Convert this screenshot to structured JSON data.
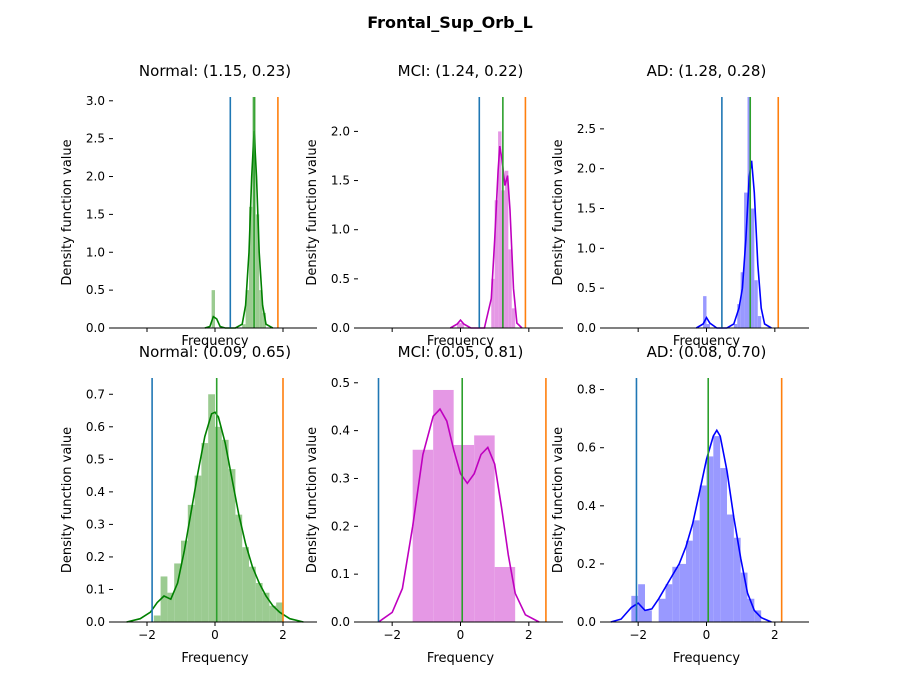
{
  "figure": {
    "title": "Frontal_Sup_Orb_L"
  },
  "colors": {
    "green": "#008000",
    "green_fill": "#9bcb91",
    "magenta": "#bf00bf",
    "magenta_fill": "#e598e5",
    "blue": "#0000ff",
    "blue_fill": "#9999ff",
    "vline_blue": "#1f77b4",
    "vline_green": "#2ca02c",
    "vline_orange": "#ff7f0e"
  },
  "chart_data": [
    {
      "type": "histogram+kde",
      "title": "Normal: (1.15, 0.23)",
      "xlabel": "Frequency",
      "ylabel": "Density function value",
      "xlim": [
        -3,
        3
      ],
      "ylim": [
        0,
        3.05
      ],
      "yticks": [
        0.0,
        0.5,
        1.0,
        1.5,
        2.0,
        2.5,
        3.0
      ],
      "xticks": [],
      "show_x_ticklabels": false,
      "color": "green",
      "bin_width": 0.1,
      "hist": [
        {
          "x": -0.05,
          "h": 0.5
        },
        {
          "x": 0.85,
          "h": 0.05
        },
        {
          "x": 0.95,
          "h": 0.5
        },
        {
          "x": 1.05,
          "h": 1.6
        },
        {
          "x": 1.15,
          "h": 3.05
        },
        {
          "x": 1.25,
          "h": 1.5
        },
        {
          "x": 1.35,
          "h": 0.5
        },
        {
          "x": 1.45,
          "h": 0.2
        }
      ],
      "kde": [
        [
          -0.3,
          0
        ],
        [
          -0.15,
          0.02
        ],
        [
          -0.05,
          0.15
        ],
        [
          0.05,
          0.12
        ],
        [
          0.15,
          0.02
        ],
        [
          0.3,
          0
        ],
        [
          0.6,
          0
        ],
        [
          0.8,
          0.05
        ],
        [
          0.9,
          0.3
        ],
        [
          1.0,
          1.0
        ],
        [
          1.08,
          2.0
        ],
        [
          1.15,
          2.6
        ],
        [
          1.22,
          2.0
        ],
        [
          1.3,
          1.0
        ],
        [
          1.4,
          0.3
        ],
        [
          1.5,
          0.05
        ],
        [
          1.7,
          0
        ]
      ],
      "vlines": [
        {
          "x": 0.45,
          "color": "vline_blue"
        },
        {
          "x": 1.15,
          "color": "vline_green"
        },
        {
          "x": 1.85,
          "color": "vline_orange"
        }
      ]
    },
    {
      "type": "histogram+kde",
      "title": "MCI: (1.24, 0.22)",
      "xlabel": "Frequency",
      "ylabel": "Density function value",
      "xlim": [
        -3,
        3
      ],
      "ylim": [
        0,
        2.35
      ],
      "yticks": [
        0.0,
        0.5,
        1.0,
        1.5,
        2.0
      ],
      "xticks": [],
      "show_x_ticklabels": false,
      "color": "magenta",
      "bin_width": 0.1,
      "hist": [
        {
          "x": -0.05,
          "h": 0.05
        },
        {
          "x": 0.05,
          "h": 0.05
        },
        {
          "x": 0.95,
          "h": 0.5
        },
        {
          "x": 1.05,
          "h": 1.3
        },
        {
          "x": 1.15,
          "h": 2.0
        },
        {
          "x": 1.25,
          "h": 1.4
        },
        {
          "x": 1.35,
          "h": 1.6
        },
        {
          "x": 1.45,
          "h": 0.8
        },
        {
          "x": 1.55,
          "h": 0.2
        }
      ],
      "kde": [
        [
          -0.3,
          0
        ],
        [
          -0.1,
          0.04
        ],
        [
          0.0,
          0.08
        ],
        [
          0.1,
          0.04
        ],
        [
          0.3,
          0
        ],
        [
          0.7,
          0
        ],
        [
          0.9,
          0.3
        ],
        [
          1.0,
          0.9
        ],
        [
          1.1,
          1.6
        ],
        [
          1.15,
          1.85
        ],
        [
          1.22,
          1.7
        ],
        [
          1.3,
          1.45
        ],
        [
          1.38,
          1.55
        ],
        [
          1.45,
          1.2
        ],
        [
          1.55,
          0.4
        ],
        [
          1.65,
          0.05
        ],
        [
          1.8,
          0
        ]
      ],
      "vlines": [
        {
          "x": 0.55,
          "color": "vline_blue"
        },
        {
          "x": 1.24,
          "color": "vline_green"
        },
        {
          "x": 1.9,
          "color": "vline_orange"
        }
      ]
    },
    {
      "type": "histogram+kde",
      "title": "AD: (1.28, 0.28)",
      "xlabel": "Frequency",
      "ylabel": "Density function value",
      "xlim": [
        -3,
        3
      ],
      "ylim": [
        0,
        2.9
      ],
      "yticks": [
        0.0,
        0.5,
        1.0,
        1.5,
        2.0,
        2.5
      ],
      "xticks": [],
      "show_x_ticklabels": false,
      "color": "blue",
      "bin_width": 0.1,
      "hist": [
        {
          "x": -0.05,
          "h": 0.4
        },
        {
          "x": 0.05,
          "h": 0.05
        },
        {
          "x": 0.85,
          "h": 0.05
        },
        {
          "x": 0.95,
          "h": 0.3
        },
        {
          "x": 1.05,
          "h": 0.7
        },
        {
          "x": 1.15,
          "h": 1.7
        },
        {
          "x": 1.25,
          "h": 2.9
        },
        {
          "x": 1.35,
          "h": 1.5
        },
        {
          "x": 1.45,
          "h": 0.6
        },
        {
          "x": 1.55,
          "h": 0.15
        }
      ],
      "kde": [
        [
          -0.3,
          0
        ],
        [
          -0.1,
          0.05
        ],
        [
          0.0,
          0.13
        ],
        [
          0.1,
          0.06
        ],
        [
          0.3,
          0
        ],
        [
          0.6,
          0
        ],
        [
          0.8,
          0.05
        ],
        [
          0.95,
          0.25
        ],
        [
          1.05,
          0.5
        ],
        [
          1.15,
          1.1
        ],
        [
          1.25,
          1.9
        ],
        [
          1.32,
          2.1
        ],
        [
          1.4,
          1.7
        ],
        [
          1.5,
          0.8
        ],
        [
          1.6,
          0.25
        ],
        [
          1.7,
          0.05
        ],
        [
          1.9,
          0
        ]
      ],
      "vlines": [
        {
          "x": 0.45,
          "color": "vline_blue"
        },
        {
          "x": 1.28,
          "color": "vline_green"
        },
        {
          "x": 2.1,
          "color": "vline_orange"
        }
      ]
    },
    {
      "type": "histogram+kde",
      "title": "Normal: (0.09, 0.65)",
      "xlabel": "Frequency",
      "ylabel": "Density function value",
      "xlim": [
        -3,
        3
      ],
      "ylim": [
        0,
        0.75
      ],
      "yticks": [
        0.0,
        0.1,
        0.2,
        0.3,
        0.4,
        0.5,
        0.6,
        0.7
      ],
      "xticks": [
        -2,
        0,
        2
      ],
      "show_x_ticklabels": true,
      "color": "green",
      "bin_width": 0.2,
      "hist": [
        {
          "x": -1.7,
          "h": 0.02
        },
        {
          "x": -1.5,
          "h": 0.14
        },
        {
          "x": -1.3,
          "h": 0.09
        },
        {
          "x": -1.1,
          "h": 0.18
        },
        {
          "x": -0.9,
          "h": 0.25
        },
        {
          "x": -0.7,
          "h": 0.36
        },
        {
          "x": -0.5,
          "h": 0.45
        },
        {
          "x": -0.3,
          "h": 0.55
        },
        {
          "x": -0.1,
          "h": 0.7
        },
        {
          "x": 0.1,
          "h": 0.6
        },
        {
          "x": 0.3,
          "h": 0.56
        },
        {
          "x": 0.5,
          "h": 0.47
        },
        {
          "x": 0.7,
          "h": 0.33
        },
        {
          "x": 0.9,
          "h": 0.23
        },
        {
          "x": 1.1,
          "h": 0.17
        },
        {
          "x": 1.3,
          "h": 0.12
        },
        {
          "x": 1.5,
          "h": 0.09
        },
        {
          "x": 1.7,
          "h": 0.05
        },
        {
          "x": 1.9,
          "h": 0.06
        }
      ],
      "kde": [
        [
          -2.6,
          0
        ],
        [
          -2.2,
          0.01
        ],
        [
          -1.9,
          0.03
        ],
        [
          -1.7,
          0.06
        ],
        [
          -1.5,
          0.08
        ],
        [
          -1.3,
          0.07
        ],
        [
          -1.1,
          0.12
        ],
        [
          -0.9,
          0.22
        ],
        [
          -0.7,
          0.34
        ],
        [
          -0.5,
          0.46
        ],
        [
          -0.3,
          0.57
        ],
        [
          -0.1,
          0.64
        ],
        [
          0.0,
          0.645
        ],
        [
          0.1,
          0.63
        ],
        [
          0.3,
          0.55
        ],
        [
          0.5,
          0.44
        ],
        [
          0.7,
          0.33
        ],
        [
          0.9,
          0.24
        ],
        [
          1.1,
          0.17
        ],
        [
          1.3,
          0.12
        ],
        [
          1.5,
          0.08
        ],
        [
          1.7,
          0.05
        ],
        [
          1.9,
          0.03
        ],
        [
          2.2,
          0.01
        ],
        [
          2.6,
          0
        ]
      ],
      "vlines": [
        {
          "x": -1.85,
          "color": "vline_blue"
        },
        {
          "x": 0.05,
          "color": "vline_green"
        },
        {
          "x": 2.0,
          "color": "vline_orange"
        }
      ]
    },
    {
      "type": "histogram+kde",
      "title": "MCI: (0.05, 0.81)",
      "xlabel": "Frequency",
      "ylabel": "Density function value",
      "xlim": [
        -3,
        3
      ],
      "ylim": [
        0,
        0.51
      ],
      "yticks": [
        0.0,
        0.1,
        0.2,
        0.3,
        0.4,
        0.5
      ],
      "xticks": [
        -2,
        0,
        2
      ],
      "show_x_ticklabels": true,
      "color": "magenta",
      "bin_width": 0.6,
      "hist": [
        {
          "x": -1.1,
          "h": 0.36
        },
        {
          "x": -0.5,
          "h": 0.485
        },
        {
          "x": 0.1,
          "h": 0.37
        },
        {
          "x": 0.7,
          "h": 0.39
        },
        {
          "x": 1.3,
          "h": 0.115
        }
      ],
      "kde": [
        [
          -2.4,
          0
        ],
        [
          -2.0,
          0.02
        ],
        [
          -1.7,
          0.07
        ],
        [
          -1.4,
          0.2
        ],
        [
          -1.1,
          0.35
        ],
        [
          -0.8,
          0.43
        ],
        [
          -0.6,
          0.445
        ],
        [
          -0.4,
          0.42
        ],
        [
          -0.2,
          0.36
        ],
        [
          0.0,
          0.31
        ],
        [
          0.2,
          0.29
        ],
        [
          0.4,
          0.31
        ],
        [
          0.6,
          0.35
        ],
        [
          0.8,
          0.365
        ],
        [
          1.0,
          0.33
        ],
        [
          1.2,
          0.24
        ],
        [
          1.4,
          0.14
        ],
        [
          1.6,
          0.06
        ],
        [
          1.9,
          0.015
        ],
        [
          2.3,
          0
        ]
      ],
      "vlines": [
        {
          "x": -2.4,
          "color": "vline_blue"
        },
        {
          "x": 0.05,
          "color": "vline_green"
        },
        {
          "x": 2.5,
          "color": "vline_orange"
        }
      ]
    },
    {
      "type": "histogram+kde",
      "title": "AD: (0.08, 0.70)",
      "xlabel": "Frequency",
      "ylabel": "Density function value",
      "xlim": [
        -3,
        3
      ],
      "ylim": [
        0,
        0.84
      ],
      "yticks": [
        0.0,
        0.2,
        0.4,
        0.6,
        0.8
      ],
      "xticks": [
        -2,
        0,
        2
      ],
      "show_x_ticklabels": true,
      "color": "blue",
      "bin_width": 0.2,
      "hist": [
        {
          "x": -2.1,
          "h": 0.09
        },
        {
          "x": -1.9,
          "h": 0.13
        },
        {
          "x": -1.7,
          "h": 0.04
        },
        {
          "x": -1.3,
          "h": 0.08
        },
        {
          "x": -1.1,
          "h": 0.13
        },
        {
          "x": -0.9,
          "h": 0.19
        },
        {
          "x": -0.7,
          "h": 0.2
        },
        {
          "x": -0.5,
          "h": 0.28
        },
        {
          "x": -0.3,
          "h": 0.35
        },
        {
          "x": -0.1,
          "h": 0.47
        },
        {
          "x": 0.1,
          "h": 0.57
        },
        {
          "x": 0.3,
          "h": 0.64
        },
        {
          "x": 0.5,
          "h": 0.53
        },
        {
          "x": 0.7,
          "h": 0.37
        },
        {
          "x": 0.9,
          "h": 0.29
        },
        {
          "x": 1.1,
          "h": 0.17
        },
        {
          "x": 1.3,
          "h": 0.08
        },
        {
          "x": 1.5,
          "h": 0.04
        }
      ],
      "kde": [
        [
          -2.8,
          0
        ],
        [
          -2.5,
          0.01
        ],
        [
          -2.2,
          0.05
        ],
        [
          -2.0,
          0.065
        ],
        [
          -1.8,
          0.04
        ],
        [
          -1.6,
          0.045
        ],
        [
          -1.4,
          0.08
        ],
        [
          -1.2,
          0.12
        ],
        [
          -1.0,
          0.16
        ],
        [
          -0.8,
          0.2
        ],
        [
          -0.6,
          0.26
        ],
        [
          -0.4,
          0.34
        ],
        [
          -0.2,
          0.45
        ],
        [
          0.0,
          0.56
        ],
        [
          0.2,
          0.64
        ],
        [
          0.3,
          0.66
        ],
        [
          0.4,
          0.64
        ],
        [
          0.6,
          0.52
        ],
        [
          0.8,
          0.36
        ],
        [
          1.0,
          0.22
        ],
        [
          1.2,
          0.1
        ],
        [
          1.4,
          0.04
        ],
        [
          1.6,
          0.015
        ],
        [
          1.9,
          0
        ]
      ],
      "vlines": [
        {
          "x": -2.05,
          "color": "vline_blue"
        },
        {
          "x": 0.05,
          "color": "vline_green"
        },
        {
          "x": 2.2,
          "color": "vline_orange"
        }
      ]
    }
  ]
}
